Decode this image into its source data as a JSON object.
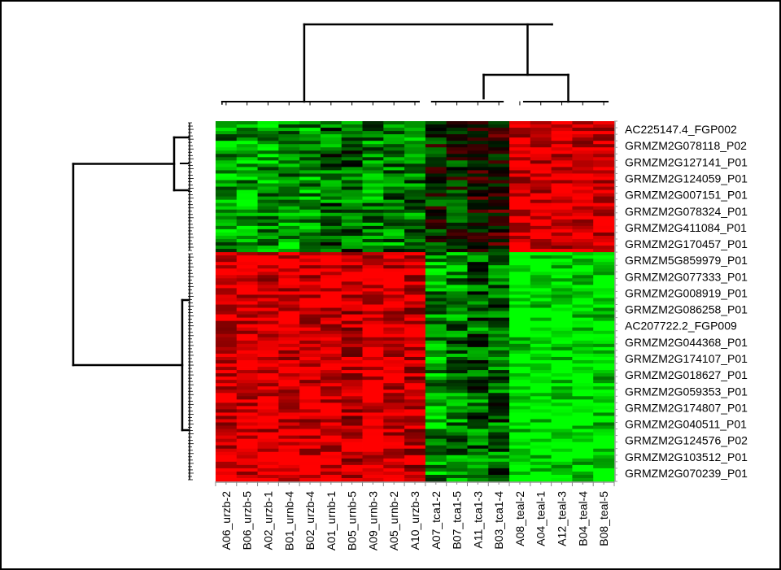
{
  "chart_data": {
    "type": "heatmap",
    "title": "",
    "colors": {
      "high": "#ff0000",
      "low": "#00ff00",
      "mid": "#000000"
    },
    "value_range": [
      -1,
      1
    ],
    "columns": [
      "A06_urzb-2",
      "B06_urzb-5",
      "A02_urzb-1",
      "B01_urnb-4",
      "B02_urzb-4",
      "A01_urnb-1",
      "B05_urnb-5",
      "A09_urnb-3",
      "A05_urnb-2",
      "A10_urzb-3",
      "A07_tca1-2",
      "B07_tca1-5",
      "A11_tca1-3",
      "B03_tca1-4",
      "A08_teal-2",
      "A04_teal-1",
      "A12_teal-3",
      "B04_teal-4",
      "B08_teal-5"
    ],
    "row_labels": [
      "AC225147.4_FGP002",
      "GRMZM2G078118_P02",
      "GRMZM2G127141_P01",
      "GRMZM2G124059_P01",
      "GRMZM2G007151_P01",
      "GRMZM2G078324_P01",
      "GRMZM2G411084_P01",
      "GRMZM2G170457_P01",
      "GRMZM5G859979_P01",
      "GRMZM2G077333_P01",
      "GRMZM2G008919_P01",
      "GRMZM2G086258_P01",
      "AC207722.2_FGP009",
      "GRMZM2G044368_P01",
      "GRMZM2G174107_P01",
      "GRMZM2G018627_P01",
      "GRMZM2G059353_P01",
      "GRMZM2G174807_P01",
      "GRMZM2G040511_P01",
      "GRMZM2G124576_P02",
      "GRMZM2G103512_P01",
      "GRMZM2G070239_P01"
    ],
    "row_clusters": [
      {
        "rows": 8,
        "values": [
          -0.6,
          -0.6,
          -0.6,
          -0.6,
          -0.6,
          -0.4,
          -0.4,
          -0.5,
          -0.5,
          -0.5,
          -0.1,
          -0.1,
          0.1,
          0.1,
          0.9,
          0.9,
          0.9,
          0.9,
          0.9
        ]
      },
      {
        "rows": 14,
        "values": [
          0.9,
          0.9,
          0.9,
          0.9,
          0.9,
          0.9,
          0.8,
          0.9,
          0.9,
          0.8,
          -0.6,
          -0.5,
          -0.4,
          -0.4,
          -0.95,
          -0.95,
          -0.95,
          -0.9,
          -0.9
        ]
      }
    ],
    "column_groups": [
      "urzb/urnb",
      "urzb/urnb",
      "urzb/urnb",
      "urzb/urnb",
      "urzb/urnb",
      "urzb/urnb",
      "urzb/urnb",
      "urzb/urnb",
      "urzb/urnb",
      "urzb/urnb",
      "tca1",
      "tca1",
      "tca1",
      "tca1",
      "teal",
      "teal",
      "teal",
      "teal",
      "teal"
    ]
  }
}
